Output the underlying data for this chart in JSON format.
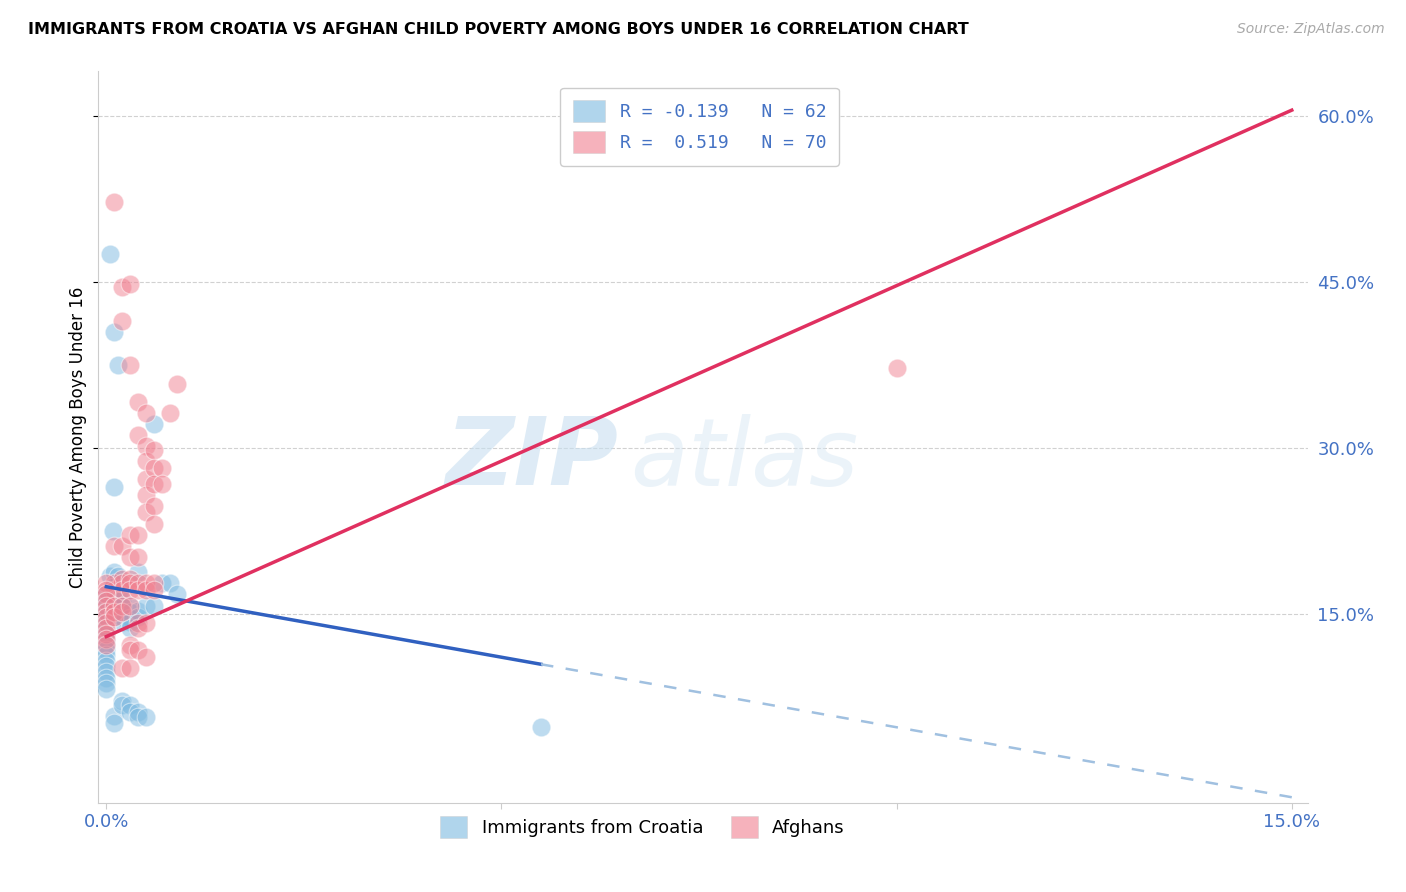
{
  "title": "IMMIGRANTS FROM CROATIA VS AFGHAN CHILD POVERTY AMONG BOYS UNDER 16 CORRELATION CHART",
  "source": "Source: ZipAtlas.com",
  "ylabel": "Child Poverty Among Boys Under 16",
  "xlim": [
    -0.001,
    0.152
  ],
  "ylim": [
    -0.02,
    0.64
  ],
  "xtick_positions": [
    0.0,
    0.05,
    0.1,
    0.15
  ],
  "xticklabels": [
    "0.0%",
    "",
    "",
    "15.0%"
  ],
  "ytick_positions": [
    0.15,
    0.3,
    0.45,
    0.6
  ],
  "yticklabels": [
    "15.0%",
    "30.0%",
    "45.0%",
    "60.0%"
  ],
  "croatia_color": "#7cb9e0",
  "afghan_color": "#f08090",
  "trend_croatia_color": "#3060c0",
  "trend_afghan_color": "#e03060",
  "trend_croatia_ext_color": "#a0c0e0",
  "watermark_text": "ZIP",
  "watermark_text2": "atlas",
  "croatia_points": [
    [
      0.0005,
      0.475
    ],
    [
      0.001,
      0.405
    ],
    [
      0.0015,
      0.375
    ],
    [
      0.001,
      0.265
    ],
    [
      0.0008,
      0.225
    ],
    [
      0.0005,
      0.185
    ],
    [
      0.001,
      0.188
    ],
    [
      0.0015,
      0.185
    ],
    [
      0.0008,
      0.175
    ],
    [
      0.001,
      0.168
    ],
    [
      0.0012,
      0.162
    ],
    [
      0.0015,
      0.168
    ],
    [
      0.002,
      0.163
    ],
    [
      0.002,
      0.158
    ],
    [
      0.0012,
      0.157
    ],
    [
      0.0008,
      0.152
    ],
    [
      0.001,
      0.148
    ],
    [
      0.0018,
      0.152
    ],
    [
      0.002,
      0.148
    ],
    [
      0.002,
      0.143
    ],
    [
      0.003,
      0.158
    ],
    [
      0.003,
      0.152
    ],
    [
      0.003,
      0.147
    ],
    [
      0.003,
      0.143
    ],
    [
      0.003,
      0.138
    ],
    [
      0.0,
      0.168
    ],
    [
      0.0,
      0.163
    ],
    [
      0.0,
      0.158
    ],
    [
      0.0,
      0.153
    ],
    [
      0.0,
      0.148
    ],
    [
      0.0,
      0.143
    ],
    [
      0.0,
      0.138
    ],
    [
      0.0,
      0.133
    ],
    [
      0.0,
      0.128
    ],
    [
      0.0,
      0.123
    ],
    [
      0.0,
      0.118
    ],
    [
      0.0,
      0.113
    ],
    [
      0.0,
      0.108
    ],
    [
      0.0,
      0.103
    ],
    [
      0.0,
      0.098
    ],
    [
      0.0,
      0.093
    ],
    [
      0.0,
      0.088
    ],
    [
      0.0,
      0.083
    ],
    [
      0.004,
      0.188
    ],
    [
      0.004,
      0.153
    ],
    [
      0.004,
      0.148
    ],
    [
      0.005,
      0.158
    ],
    [
      0.006,
      0.322
    ],
    [
      0.006,
      0.158
    ],
    [
      0.007,
      0.178
    ],
    [
      0.008,
      0.178
    ],
    [
      0.009,
      0.168
    ],
    [
      0.055,
      0.048
    ],
    [
      0.001,
      0.058
    ],
    [
      0.001,
      0.052
    ],
    [
      0.002,
      0.072
    ],
    [
      0.002,
      0.068
    ],
    [
      0.003,
      0.068
    ],
    [
      0.003,
      0.062
    ],
    [
      0.004,
      0.062
    ],
    [
      0.004,
      0.057
    ],
    [
      0.005,
      0.057
    ]
  ],
  "afghan_points": [
    [
      0.001,
      0.522
    ],
    [
      0.002,
      0.445
    ],
    [
      0.003,
      0.448
    ],
    [
      0.002,
      0.415
    ],
    [
      0.003,
      0.375
    ],
    [
      0.004,
      0.342
    ],
    [
      0.004,
      0.312
    ],
    [
      0.005,
      0.332
    ],
    [
      0.005,
      0.302
    ],
    [
      0.005,
      0.288
    ],
    [
      0.005,
      0.272
    ],
    [
      0.005,
      0.258
    ],
    [
      0.005,
      0.242
    ],
    [
      0.006,
      0.298
    ],
    [
      0.006,
      0.282
    ],
    [
      0.006,
      0.268
    ],
    [
      0.006,
      0.248
    ],
    [
      0.006,
      0.232
    ],
    [
      0.007,
      0.282
    ],
    [
      0.007,
      0.268
    ],
    [
      0.008,
      0.332
    ],
    [
      0.001,
      0.212
    ],
    [
      0.002,
      0.212
    ],
    [
      0.003,
      0.222
    ],
    [
      0.003,
      0.202
    ],
    [
      0.004,
      0.222
    ],
    [
      0.004,
      0.202
    ],
    [
      0.001,
      0.178
    ],
    [
      0.001,
      0.172
    ],
    [
      0.002,
      0.182
    ],
    [
      0.002,
      0.178
    ],
    [
      0.002,
      0.172
    ],
    [
      0.003,
      0.182
    ],
    [
      0.003,
      0.178
    ],
    [
      0.003,
      0.172
    ],
    [
      0.004,
      0.178
    ],
    [
      0.004,
      0.172
    ],
    [
      0.005,
      0.178
    ],
    [
      0.005,
      0.172
    ],
    [
      0.006,
      0.178
    ],
    [
      0.006,
      0.172
    ],
    [
      0.0,
      0.178
    ],
    [
      0.0,
      0.172
    ],
    [
      0.0,
      0.168
    ],
    [
      0.0,
      0.162
    ],
    [
      0.0,
      0.158
    ],
    [
      0.0,
      0.152
    ],
    [
      0.0,
      0.148
    ],
    [
      0.0,
      0.142
    ],
    [
      0.0,
      0.138
    ],
    [
      0.0,
      0.132
    ],
    [
      0.0,
      0.128
    ],
    [
      0.0,
      0.122
    ],
    [
      0.001,
      0.158
    ],
    [
      0.001,
      0.152
    ],
    [
      0.001,
      0.148
    ],
    [
      0.002,
      0.158
    ],
    [
      0.002,
      0.152
    ],
    [
      0.003,
      0.158
    ],
    [
      0.004,
      0.142
    ],
    [
      0.004,
      0.138
    ],
    [
      0.005,
      0.142
    ],
    [
      0.003,
      0.122
    ],
    [
      0.003,
      0.118
    ],
    [
      0.004,
      0.118
    ],
    [
      0.005,
      0.112
    ],
    [
      0.002,
      0.102
    ],
    [
      0.003,
      0.102
    ],
    [
      0.009,
      0.358
    ],
    [
      0.1,
      0.372
    ]
  ],
  "trend_afghan_x0": 0.0,
  "trend_afghan_y0": 0.13,
  "trend_afghan_x1": 0.15,
  "trend_afghan_y1": 0.605,
  "trend_croatia_x0": 0.0,
  "trend_croatia_y0": 0.175,
  "trend_croatia_x1": 0.055,
  "trend_croatia_y1": 0.105,
  "trend_croatia_ext_x0": 0.055,
  "trend_croatia_ext_y0": 0.105,
  "trend_croatia_ext_x1": 0.15,
  "trend_croatia_ext_y1": -0.015
}
